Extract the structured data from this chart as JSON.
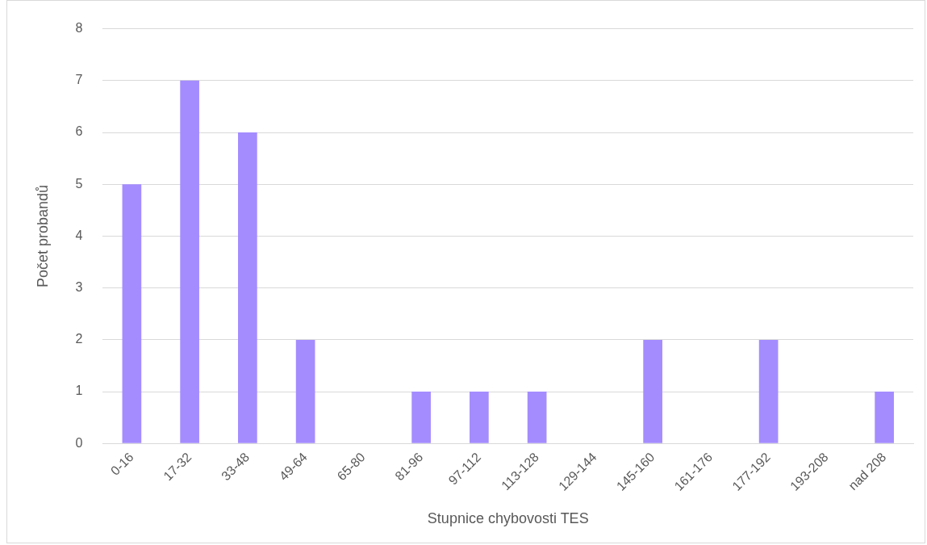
{
  "chart_data": {
    "type": "bar",
    "xlabel": "Stupnice chybovosti TES",
    "ylabel": "Počet probandů",
    "categories": [
      "0-16",
      "17-32",
      "33-48",
      "49-64",
      "65-80",
      "81-96",
      "97-112",
      "113-128",
      "129-144",
      "145-160",
      "161-176",
      "177-192",
      "193-208",
      "nad 208"
    ],
    "values": [
      5,
      7,
      6,
      2,
      0,
      1,
      1,
      1,
      0,
      2,
      0,
      2,
      0,
      1
    ],
    "color": "#a48cff",
    "ylim": [
      0,
      8
    ],
    "yticks": [
      0,
      1,
      2,
      3,
      4,
      5,
      6,
      7,
      8
    ],
    "grid": "y",
    "legend": false
  }
}
